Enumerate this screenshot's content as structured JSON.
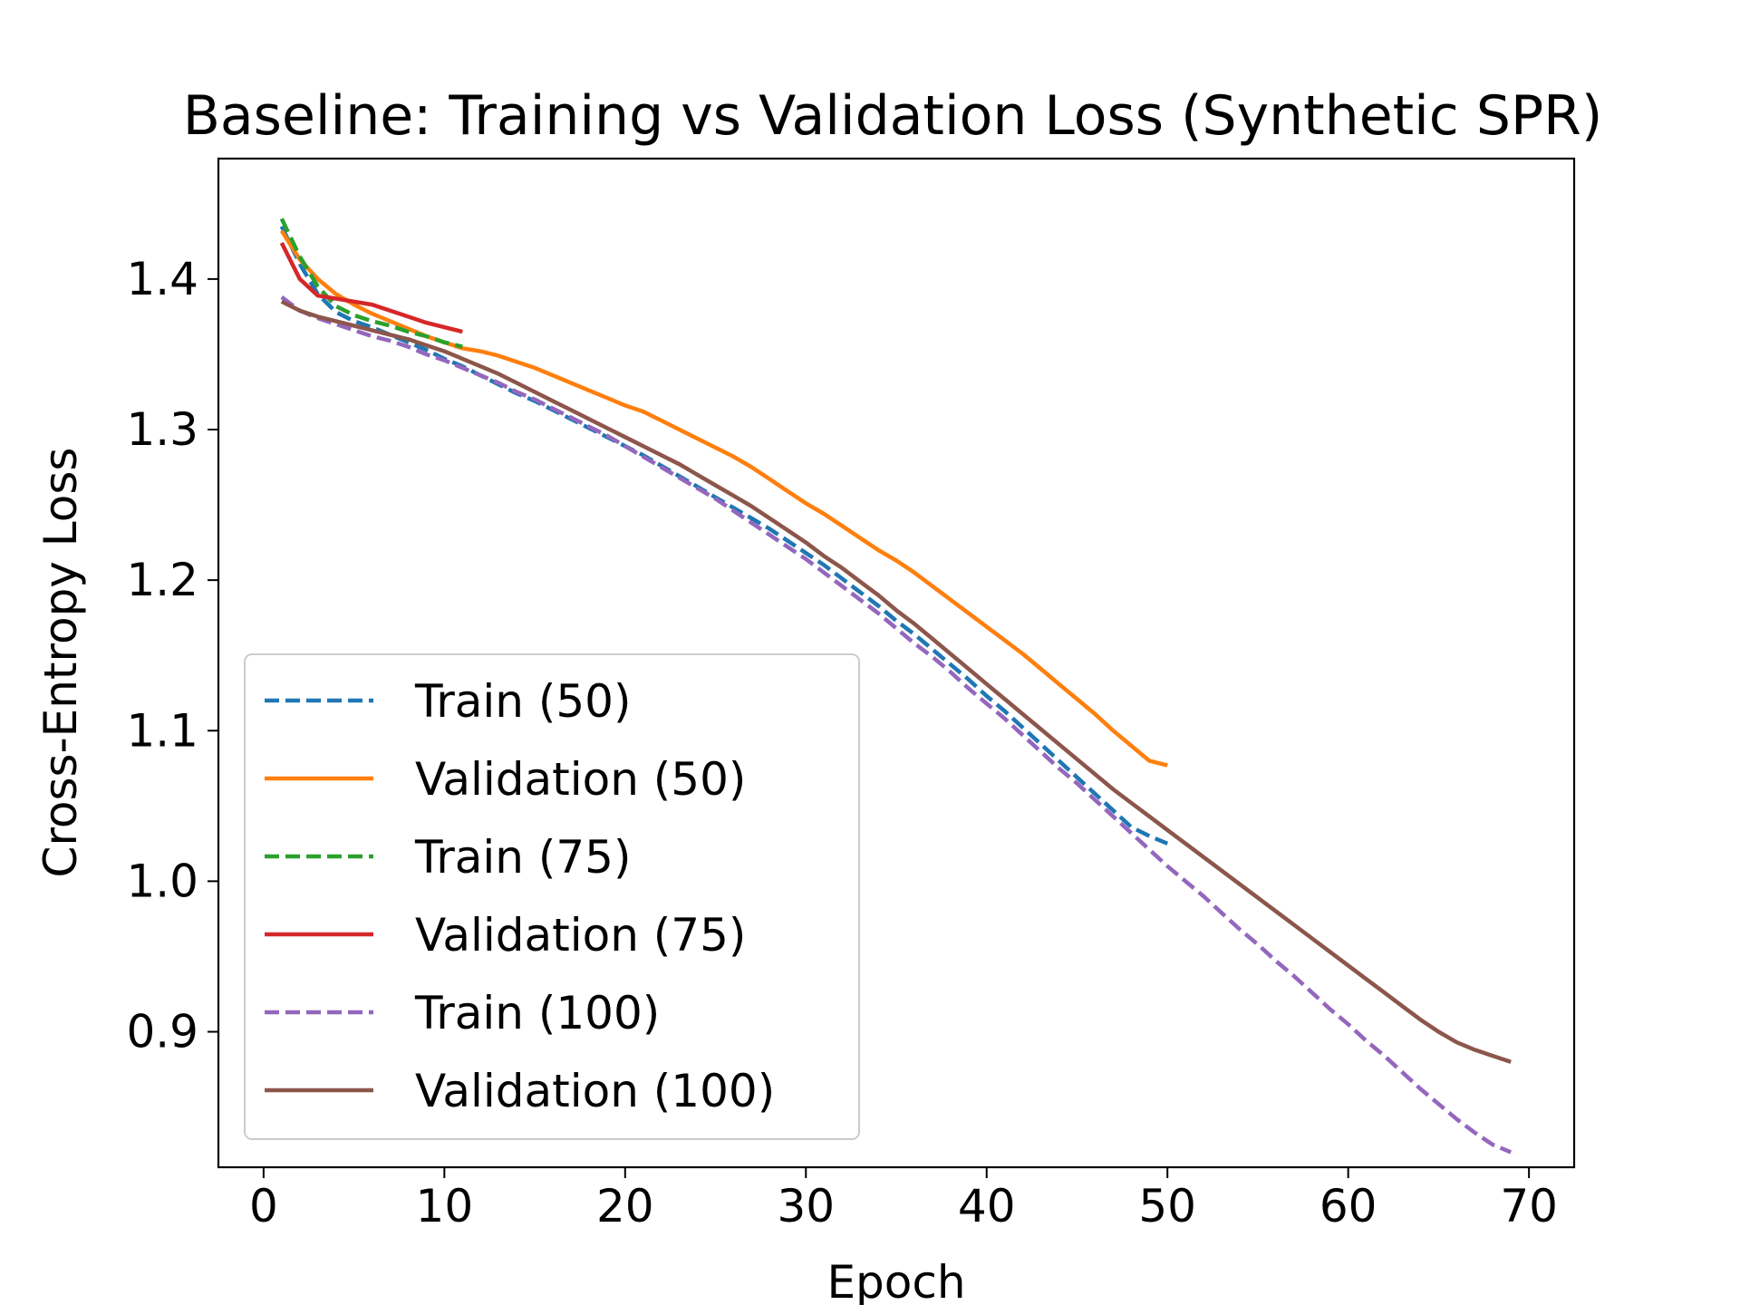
{
  "chart_data": {
    "type": "line",
    "title": "Baseline: Training vs Validation Loss (Synthetic SPR)",
    "xlabel": "Epoch",
    "ylabel": "Cross-Entropy Loss",
    "xlim": [
      -2.5,
      72.5
    ],
    "ylim": [
      0.81,
      1.48
    ],
    "xticks": [
      0,
      10,
      20,
      30,
      40,
      50,
      60,
      70
    ],
    "yticks": [
      0.9,
      1.0,
      1.1,
      1.2,
      1.3,
      1.4
    ],
    "ytick_labels": [
      "0.9",
      "1.0",
      "1.1",
      "1.2",
      "1.3",
      "1.4"
    ],
    "grid": false,
    "legend_position": "lower-left",
    "series": [
      {
        "name": "Train (50)",
        "color": "#1f77b4",
        "dash": true,
        "x": [
          1,
          2,
          3,
          4,
          5,
          6,
          7,
          8,
          9,
          10,
          11,
          12,
          13,
          14,
          15,
          16,
          17,
          18,
          19,
          20,
          21,
          22,
          23,
          24,
          25,
          26,
          27,
          28,
          29,
          30,
          31,
          32,
          33,
          34,
          35,
          36,
          37,
          38,
          39,
          40,
          41,
          42,
          43,
          44,
          45,
          46,
          47,
          48,
          49,
          50
        ],
        "y": [
          1.435,
          1.41,
          1.39,
          1.378,
          1.372,
          1.368,
          1.363,
          1.358,
          1.353,
          1.347,
          1.342,
          1.336,
          1.33,
          1.324,
          1.319,
          1.313,
          1.307,
          1.301,
          1.295,
          1.289,
          1.283,
          1.276,
          1.269,
          1.262,
          1.255,
          1.248,
          1.241,
          1.234,
          1.226,
          1.218,
          1.21,
          1.201,
          1.192,
          1.183,
          1.173,
          1.164,
          1.154,
          1.144,
          1.134,
          1.123,
          1.113,
          1.102,
          1.091,
          1.08,
          1.069,
          1.058,
          1.047,
          1.036,
          1.03,
          1.025
        ]
      },
      {
        "name": "Validation (50)",
        "color": "#ff7f0e",
        "dash": false,
        "x": [
          1,
          2,
          3,
          4,
          5,
          6,
          7,
          8,
          9,
          10,
          11,
          12,
          13,
          14,
          15,
          16,
          17,
          18,
          19,
          20,
          21,
          22,
          23,
          24,
          25,
          26,
          27,
          28,
          29,
          30,
          31,
          32,
          33,
          34,
          35,
          36,
          37,
          38,
          39,
          40,
          41,
          42,
          43,
          44,
          45,
          46,
          47,
          48,
          49,
          50
        ],
        "y": [
          1.432,
          1.413,
          1.4,
          1.39,
          1.383,
          1.377,
          1.372,
          1.367,
          1.362,
          1.358,
          1.354,
          1.352,
          1.349,
          1.345,
          1.341,
          1.336,
          1.331,
          1.326,
          1.321,
          1.316,
          1.312,
          1.306,
          1.3,
          1.294,
          1.288,
          1.282,
          1.275,
          1.267,
          1.259,
          1.251,
          1.244,
          1.236,
          1.228,
          1.22,
          1.213,
          1.205,
          1.196,
          1.187,
          1.178,
          1.169,
          1.16,
          1.151,
          1.141,
          1.131,
          1.121,
          1.111,
          1.1,
          1.09,
          1.08,
          1.077
        ]
      },
      {
        "name": "Train (75)",
        "color": "#2ca02c",
        "dash": true,
        "x": [
          1,
          2,
          3,
          4,
          5,
          6,
          7,
          8,
          9,
          10,
          11
        ],
        "y": [
          1.44,
          1.415,
          1.395,
          1.382,
          1.376,
          1.372,
          1.369,
          1.365,
          1.362,
          1.358,
          1.355
        ]
      },
      {
        "name": "Validation (75)",
        "color": "#d62728",
        "dash": false,
        "x": [
          1,
          2,
          3,
          4,
          5,
          6,
          7,
          8,
          9,
          10,
          11
        ],
        "y": [
          1.424,
          1.4,
          1.389,
          1.387,
          1.385,
          1.383,
          1.379,
          1.375,
          1.371,
          1.368,
          1.365
        ]
      },
      {
        "name": "Train (100)",
        "color": "#9467bd",
        "dash": true,
        "x": [
          1,
          2,
          3,
          4,
          5,
          6,
          7,
          8,
          9,
          10,
          11,
          12,
          13,
          14,
          15,
          16,
          17,
          18,
          19,
          20,
          21,
          22,
          23,
          24,
          25,
          26,
          27,
          28,
          29,
          30,
          31,
          32,
          33,
          34,
          35,
          36,
          37,
          38,
          39,
          40,
          41,
          42,
          43,
          44,
          45,
          46,
          47,
          48,
          49,
          50,
          51,
          52,
          53,
          54,
          55,
          56,
          57,
          58,
          59,
          60,
          61,
          62,
          63,
          64,
          65,
          66,
          67,
          68,
          69
        ],
        "y": [
          1.388,
          1.379,
          1.374,
          1.37,
          1.366,
          1.362,
          1.359,
          1.355,
          1.35,
          1.346,
          1.341,
          1.336,
          1.331,
          1.325,
          1.32,
          1.314,
          1.308,
          1.302,
          1.296,
          1.289,
          1.282,
          1.275,
          1.268,
          1.261,
          1.254,
          1.246,
          1.238,
          1.23,
          1.222,
          1.214,
          1.205,
          1.196,
          1.187,
          1.178,
          1.168,
          1.158,
          1.149,
          1.139,
          1.128,
          1.118,
          1.108,
          1.097,
          1.086,
          1.075,
          1.065,
          1.054,
          1.043,
          1.032,
          1.021,
          1.01,
          1.0,
          0.99,
          0.979,
          0.968,
          0.958,
          0.947,
          0.937,
          0.926,
          0.915,
          0.905,
          0.894,
          0.884,
          0.873,
          0.862,
          0.852,
          0.842,
          0.833,
          0.825,
          0.82
        ]
      },
      {
        "name": "Validation (100)",
        "color": "#8c564b",
        "dash": false,
        "x": [
          1,
          2,
          3,
          4,
          5,
          6,
          7,
          8,
          9,
          10,
          11,
          12,
          13,
          14,
          15,
          16,
          17,
          18,
          19,
          20,
          21,
          22,
          23,
          24,
          25,
          26,
          27,
          28,
          29,
          30,
          31,
          32,
          33,
          34,
          35,
          36,
          37,
          38,
          39,
          40,
          41,
          42,
          43,
          44,
          45,
          46,
          47,
          48,
          49,
          50,
          51,
          52,
          53,
          54,
          55,
          56,
          57,
          58,
          59,
          60,
          61,
          62,
          63,
          64,
          65,
          66,
          67,
          68,
          69
        ],
        "y": [
          1.385,
          1.379,
          1.375,
          1.372,
          1.369,
          1.366,
          1.363,
          1.36,
          1.356,
          1.352,
          1.347,
          1.342,
          1.337,
          1.331,
          1.325,
          1.319,
          1.313,
          1.307,
          1.301,
          1.295,
          1.289,
          1.283,
          1.277,
          1.27,
          1.263,
          1.256,
          1.249,
          1.241,
          1.233,
          1.225,
          1.216,
          1.208,
          1.199,
          1.19,
          1.18,
          1.171,
          1.161,
          1.151,
          1.141,
          1.131,
          1.121,
          1.111,
          1.101,
          1.091,
          1.081,
          1.071,
          1.061,
          1.052,
          1.043,
          1.034,
          1.025,
          1.016,
          1.007,
          0.998,
          0.989,
          0.98,
          0.971,
          0.962,
          0.953,
          0.944,
          0.935,
          0.926,
          0.917,
          0.908,
          0.9,
          0.893,
          0.888,
          0.884,
          0.88
        ]
      }
    ]
  }
}
